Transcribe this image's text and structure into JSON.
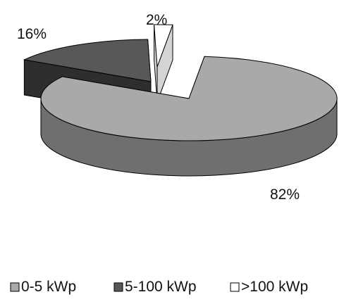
{
  "chart_data": {
    "type": "pie",
    "style": "3d-exploded",
    "categories": [
      "0-5 kWp",
      "5-100 kWp",
      ">100 kWp"
    ],
    "values": [
      82,
      16,
      2
    ],
    "data_labels": [
      "82%",
      "16%",
      "2%"
    ],
    "title": "",
    "legend_position": "bottom",
    "colors": {
      "0-5 kWp": {
        "top": "#a9a9a9",
        "side": "#6f6f6f"
      },
      "5-100 kWp": {
        "top": "#585858",
        "side": "#2e2e2e"
      },
      ">100 kWp": {
        "top": "#ffffff",
        "side": "#d4d4d4"
      }
    },
    "outline_color": "#000000"
  }
}
